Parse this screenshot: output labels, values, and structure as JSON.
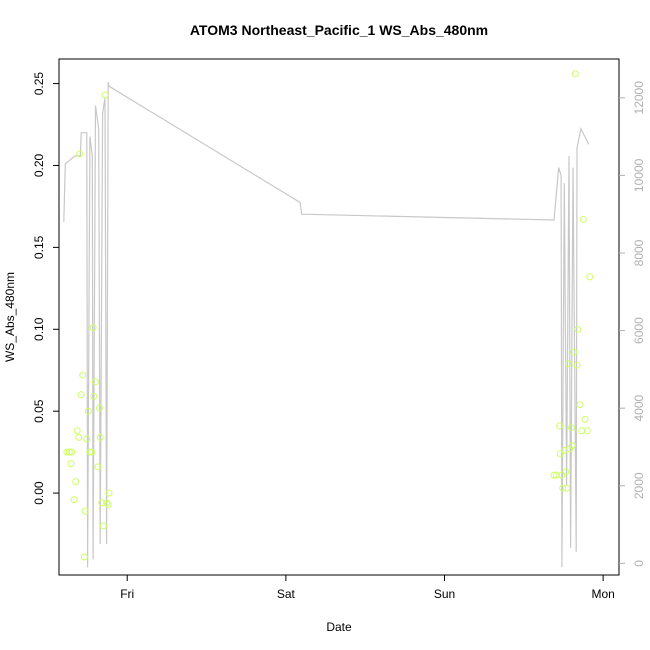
{
  "chart_data": {
    "type": "scatter",
    "title": "ATOM3 Northeast_Pacific_1 WS_Abs_480nm",
    "xlabel": "Date",
    "ylabel": "WS_Abs_480nm",
    "x_unit": "days since Thursday 00:00",
    "x_ticks": [
      {
        "label": "Fri",
        "value": 1
      },
      {
        "label": "Sat",
        "value": 2
      },
      {
        "label": "Sun",
        "value": 3
      },
      {
        "label": "Mon",
        "value": 4
      }
    ],
    "xlim": [
      0.57,
      4.1
    ],
    "ylim": [
      -0.05,
      0.265
    ],
    "y_ticks": [
      0.0,
      0.05,
      0.1,
      0.15,
      0.2,
      0.25
    ],
    "y_tick_labels": [
      "0.00",
      "0.05",
      "0.10",
      "0.15",
      "0.20",
      "0.25"
    ],
    "y2lim": [
      -300,
      13000
    ],
    "y2_ticks": [
      0,
      2000,
      4000,
      6000,
      8000,
      10000,
      12000
    ],
    "y2_tick_labels": [
      "0",
      "2000",
      "4000",
      "6000",
      "8000",
      "10000",
      "12000"
    ],
    "grid": false,
    "series": [
      {
        "kind": "points",
        "axis": "left",
        "color": "#ccff66",
        "points": [
          [
            0.62,
            0.025
          ],
          [
            0.635,
            0.025
          ],
          [
            0.645,
            0.018
          ],
          [
            0.65,
            0.025
          ],
          [
            0.665,
            -0.004
          ],
          [
            0.675,
            0.007
          ],
          [
            0.685,
            0.038
          ],
          [
            0.695,
            0.034
          ],
          [
            0.7,
            0.207
          ],
          [
            0.71,
            0.06
          ],
          [
            0.72,
            0.072
          ],
          [
            0.73,
            -0.039
          ],
          [
            0.735,
            -0.011
          ],
          [
            0.745,
            0.033
          ],
          [
            0.755,
            0.05
          ],
          [
            0.765,
            0.025
          ],
          [
            0.775,
            0.025
          ],
          [
            0.785,
            0.101
          ],
          [
            0.79,
            0.059
          ],
          [
            0.8,
            0.068
          ],
          [
            0.815,
            0.016
          ],
          [
            0.825,
            0.052
          ],
          [
            0.83,
            0.034
          ],
          [
            0.84,
            -0.006
          ],
          [
            0.85,
            -0.02
          ],
          [
            0.86,
            0.243
          ],
          [
            0.87,
            -0.006
          ],
          [
            0.88,
            -0.007
          ],
          [
            0.885,
            0.0
          ],
          [
            3.69,
            0.011
          ],
          [
            3.705,
            0.011
          ],
          [
            3.725,
            0.041
          ],
          [
            3.73,
            0.024
          ],
          [
            3.74,
            0.011
          ],
          [
            3.745,
            0.003
          ],
          [
            3.755,
            0.026
          ],
          [
            3.765,
            0.013
          ],
          [
            3.77,
            0.003
          ],
          [
            3.78,
            0.079
          ],
          [
            3.79,
            0.027
          ],
          [
            3.8,
            0.04
          ],
          [
            3.805,
            0.029
          ],
          [
            3.815,
            0.086
          ],
          [
            3.825,
            0.256
          ],
          [
            3.835,
            0.078
          ],
          [
            3.84,
            0.1
          ],
          [
            3.855,
            0.054
          ],
          [
            3.865,
            0.038
          ],
          [
            3.875,
            0.167
          ],
          [
            3.885,
            0.045
          ],
          [
            3.9,
            0.038
          ],
          [
            3.915,
            0.132
          ]
        ]
      },
      {
        "kind": "line",
        "axis": "right",
        "color": "#c8c8c8",
        "points": [
          [
            0.6,
            8800
          ],
          [
            0.61,
            10300
          ],
          [
            0.67,
            10500
          ],
          [
            0.705,
            10500
          ],
          [
            0.71,
            11100
          ],
          [
            0.745,
            11100
          ],
          [
            0.75,
            -100
          ],
          [
            0.765,
            11000
          ],
          [
            0.78,
            10500
          ],
          [
            0.785,
            100
          ],
          [
            0.8,
            11800
          ],
          [
            0.82,
            11200
          ],
          [
            0.83,
            500
          ],
          [
            0.845,
            11600
          ],
          [
            0.86,
            12000
          ],
          [
            0.87,
            500
          ],
          [
            0.88,
            12400
          ],
          [
            0.885,
            12300
          ],
          [
            2.09,
            9300
          ],
          [
            2.1,
            9000
          ],
          [
            3.69,
            8850
          ],
          [
            3.72,
            10200
          ],
          [
            3.735,
            10000
          ],
          [
            3.74,
            -100
          ],
          [
            3.755,
            9800
          ],
          [
            3.77,
            2000
          ],
          [
            3.785,
            10500
          ],
          [
            3.795,
            400
          ],
          [
            3.81,
            10200
          ],
          [
            3.83,
            300
          ],
          [
            3.835,
            10700
          ],
          [
            3.85,
            11000
          ],
          [
            3.86,
            11200
          ],
          [
            3.885,
            11000
          ],
          [
            3.91,
            10800
          ]
        ]
      }
    ]
  }
}
